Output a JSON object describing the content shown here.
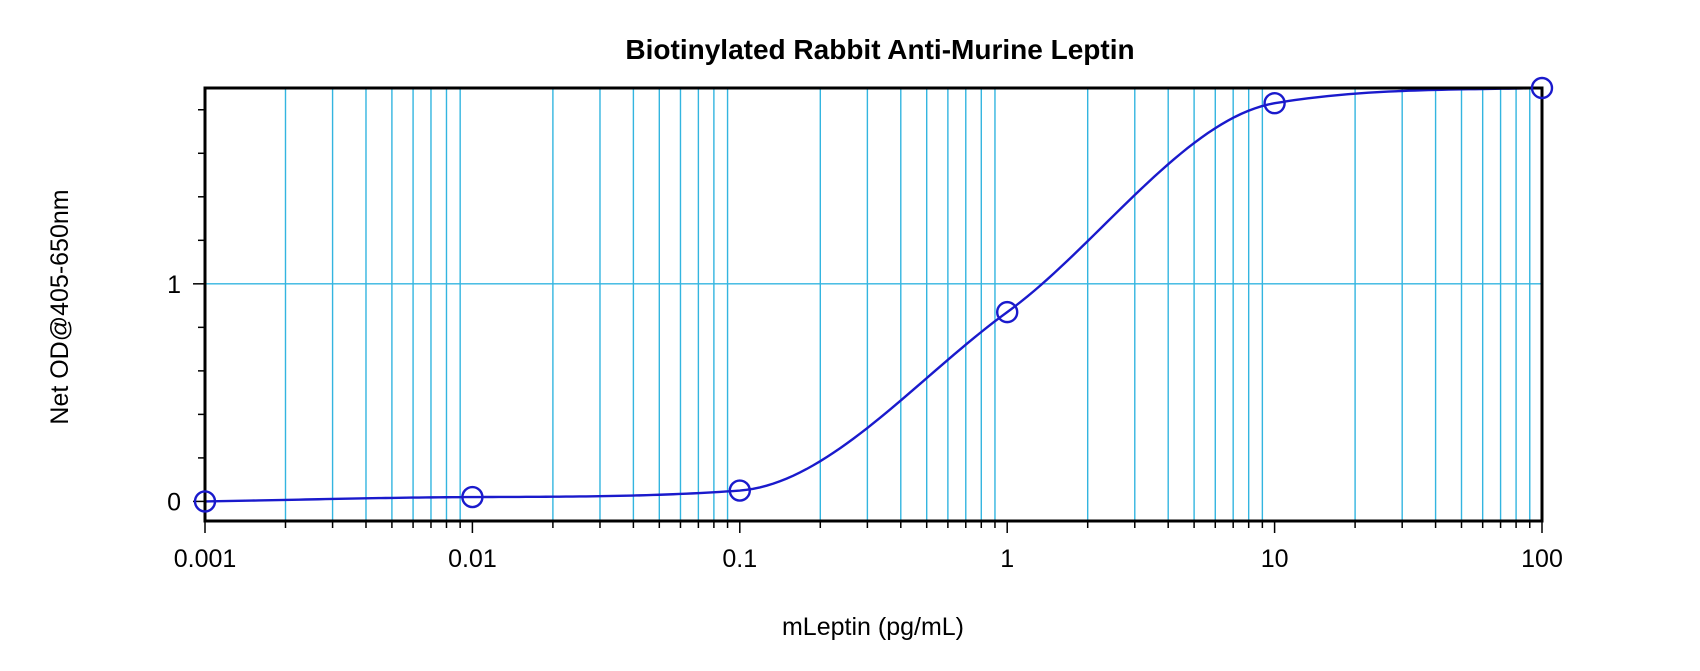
{
  "chart_data": {
    "type": "scatter",
    "title": "Biotinylated Rabbit Anti-Murine Leptin",
    "xlabel": "mLeptin (pg/mL)",
    "ylabel": "Net OD@405-650nm",
    "x_scale": "log",
    "xlim": [
      0.001,
      100
    ],
    "ylim": [
      -0.09,
      1.9
    ],
    "x_ticks": [
      "0.001",
      "0.01",
      "0.1",
      "1",
      "10",
      "100"
    ],
    "y_ticks": [
      "0",
      "1"
    ],
    "grid": true,
    "series": [
      {
        "points": [
          {
            "x": 0.001,
            "y": 0.0
          },
          {
            "x": 0.01,
            "y": 0.02
          },
          {
            "x": 0.1,
            "y": 0.05
          },
          {
            "x": 1,
            "y": 0.87
          },
          {
            "x": 10,
            "y": 1.83
          },
          {
            "x": 100,
            "y": 1.9
          }
        ],
        "fit_curve": true
      }
    ],
    "colors": {
      "series": "#1a1acc",
      "grid": "#33b5e0",
      "axes": "#000000"
    }
  }
}
